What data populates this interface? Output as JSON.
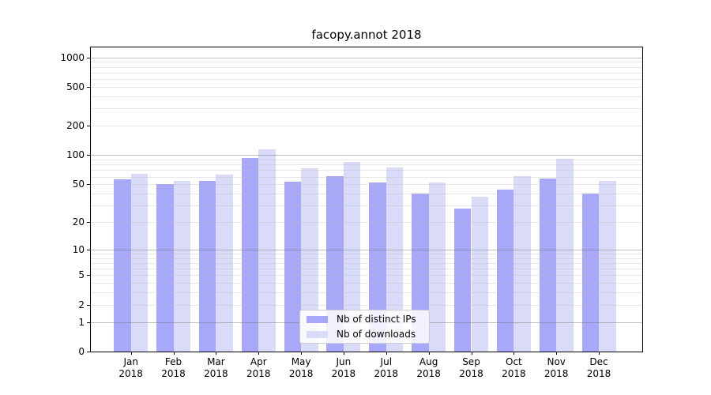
{
  "title": "facopy.annot 2018",
  "chart_data": {
    "type": "bar",
    "title": "facopy.annot 2018",
    "categories": [
      "Jan",
      "Feb",
      "Mar",
      "Apr",
      "May",
      "Jun",
      "Jul",
      "Aug",
      "Sep",
      "Oct",
      "Nov",
      "Dec"
    ],
    "x_year": "2018",
    "series": [
      {
        "name": "Nb of distinct IPs",
        "color": "#a8a8fa",
        "values": [
          56,
          50,
          54,
          94,
          53,
          61,
          52,
          40,
          28,
          44,
          57,
          40
        ]
      },
      {
        "name": "Nb of downloads",
        "color": "#dadaf9",
        "values": [
          64,
          54,
          63,
          115,
          73,
          85,
          75,
          52,
          37,
          61,
          92,
          54
        ]
      }
    ],
    "y_ticks": [
      0,
      1,
      2,
      5,
      10,
      20,
      50,
      100,
      200,
      500,
      1000
    ],
    "y_scale": "log1p",
    "ylim": [
      0,
      1270
    ],
    "xlabel": "",
    "ylabel": "",
    "grid": true,
    "legend_position": "lower center",
    "grid_major_at": [
      1,
      10,
      100,
      1000
    ]
  }
}
